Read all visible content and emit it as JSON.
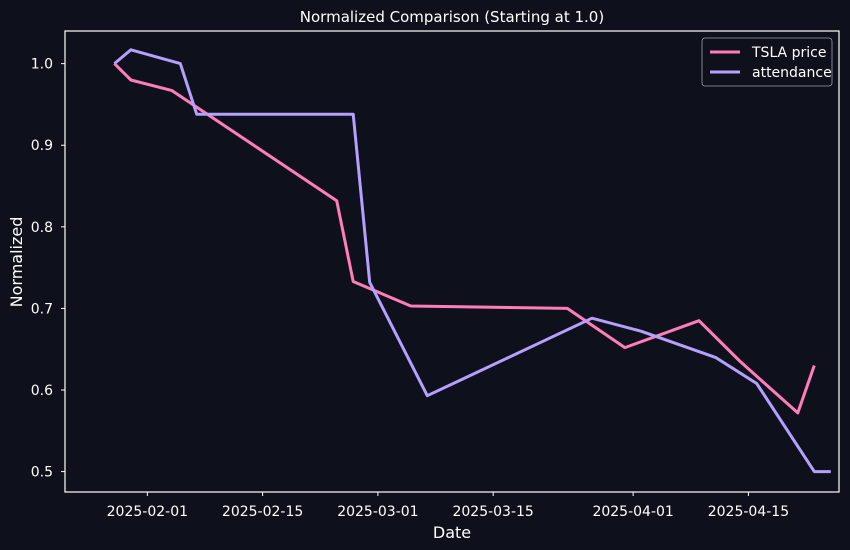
{
  "chart_data": {
    "type": "line",
    "title": "Normalized  Comparison (Starting at 1.0)",
    "xlabel": "Date",
    "ylabel": "Normalized",
    "x_axis_type": "date",
    "xlim": [
      "2025-01-22",
      "2025-04-26"
    ],
    "ylim": [
      0.475,
      1.04
    ],
    "xticks": [
      "2025-02-01",
      "2025-02-15",
      "2025-03-01",
      "2025-03-15",
      "2025-04-01",
      "2025-04-15"
    ],
    "yticks": [
      0.5,
      0.6,
      0.7,
      0.8,
      0.9,
      1.0
    ],
    "ytick_labels": [
      "0.5",
      "0.6",
      "0.7",
      "0.8",
      "0.9",
      "1.0"
    ],
    "grid": false,
    "legend_position": "top-right",
    "series": [
      {
        "name": "TSLA price",
        "color": "#ff7eb9",
        "points": [
          [
            "2025-01-28",
            1.0
          ],
          [
            "2025-01-30",
            0.98
          ],
          [
            "2025-02-04",
            0.967
          ],
          [
            "2025-02-24",
            0.832
          ],
          [
            "2025-02-26",
            0.733
          ],
          [
            "2025-03-05",
            0.703
          ],
          [
            "2025-03-24",
            0.7
          ],
          [
            "2025-03-31",
            0.652
          ],
          [
            "2025-04-09",
            0.685
          ],
          [
            "2025-04-14",
            0.635
          ],
          [
            "2025-04-21",
            0.572
          ],
          [
            "2025-04-23",
            0.63
          ]
        ]
      },
      {
        "name": "attendance",
        "color": "#b4a0ff",
        "points": [
          [
            "2025-01-28",
            1.0
          ],
          [
            "2025-01-30",
            1.017
          ],
          [
            "2025-02-05",
            1.0
          ],
          [
            "2025-02-07",
            0.938
          ],
          [
            "2025-02-26",
            0.938
          ],
          [
            "2025-02-28",
            0.732
          ],
          [
            "2025-03-07",
            0.593
          ],
          [
            "2025-03-27",
            0.688
          ],
          [
            "2025-04-02",
            0.672
          ],
          [
            "2025-04-11",
            0.64
          ],
          [
            "2025-04-16",
            0.608
          ],
          [
            "2025-04-23",
            0.5
          ],
          [
            "2025-04-25",
            0.5
          ]
        ]
      }
    ]
  }
}
